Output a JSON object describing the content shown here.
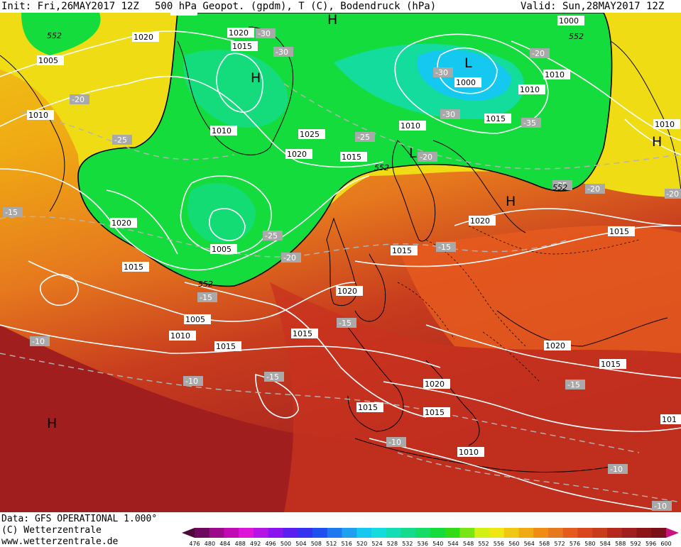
{
  "header": {
    "init": "Init: Fri,26MAY2017 12Z",
    "title": "500 hPa Geopot. (gpdm), T (C), Bodendruck (hPa)",
    "valid": "Valid: Sun,28MAY2017 12Z"
  },
  "footer": {
    "data_source": "Data: GFS OPERATIONAL 1.000°",
    "copyright": "(C) Wetterzentrale",
    "website": "www.wetterzentrale.de"
  },
  "colorbar": {
    "ticks": [
      "476",
      "480",
      "484",
      "488",
      "492",
      "496",
      "500",
      "504",
      "508",
      "512",
      "516",
      "520",
      "524",
      "528",
      "532",
      "536",
      "540",
      "544",
      "548",
      "552",
      "556",
      "560",
      "564",
      "568",
      "572",
      "576",
      "580",
      "584",
      "588",
      "592",
      "596",
      "600"
    ],
    "colors": [
      "#4a0a3c",
      "#6e0a5e",
      "#9a0a8a",
      "#c20ab4",
      "#de14d8",
      "#b414e6",
      "#8a14f0",
      "#5a1ef0",
      "#3232f0",
      "#1e50f0",
      "#1e78f0",
      "#1ea0f0",
      "#14c8f0",
      "#14dcdc",
      "#14dcb4",
      "#14dc8c",
      "#14dc64",
      "#14dc3c",
      "#32dc14",
      "#78e614",
      "#d2f014",
      "#f0e614",
      "#f0c814",
      "#f0aa14",
      "#f08c14",
      "#e6781e",
      "#e65a1e",
      "#dc461e",
      "#c83c1e",
      "#b4281e",
      "#a01e1e",
      "#8c1414",
      "#780f19",
      "#c8147a"
    ]
  },
  "map": {
    "highs": [
      "H",
      "H",
      "H",
      "H",
      "H"
    ],
    "lows": [
      "L",
      "L"
    ],
    "isobar_labels": [
      "1020",
      "1005",
      "1010",
      "1020",
      "1015",
      "1015",
      "1010",
      "1005",
      "1010",
      "1015",
      "1020",
      "1015",
      "1010",
      "1005",
      "1010",
      "1015",
      "1020",
      "1015",
      "1020",
      "1015",
      "1010",
      "1020",
      "1015",
      "1020",
      "1015",
      "1015",
      "1015",
      "1010",
      "1000",
      "1000",
      "1005",
      "1010",
      "1015",
      "1010",
      "1010",
      "1015",
      "1020",
      "101",
      "1025",
      "1020"
    ],
    "temp_labels": [
      "-20",
      "-25",
      "-15",
      "-25",
      "-20",
      "-30",
      "-30",
      "-25",
      "-20",
      "-15",
      "-15",
      "-10",
      "-10",
      "-15",
      "-15",
      "-15",
      "-20",
      "-30",
      "-30",
      "-35",
      "-20",
      "-20",
      "-25",
      "-15",
      "-20",
      "-10",
      "-10",
      "-10"
    ],
    "geopot_labels": [
      "552",
      "552",
      "552",
      "552",
      "552"
    ],
    "colors": {
      "far_north_yellow": "#e6dc14",
      "green_552": "#14dc3c",
      "cyan_low": "#14c8f0",
      "orange_mid": "#f0aa14",
      "red_south": "#b4281e"
    }
  }
}
